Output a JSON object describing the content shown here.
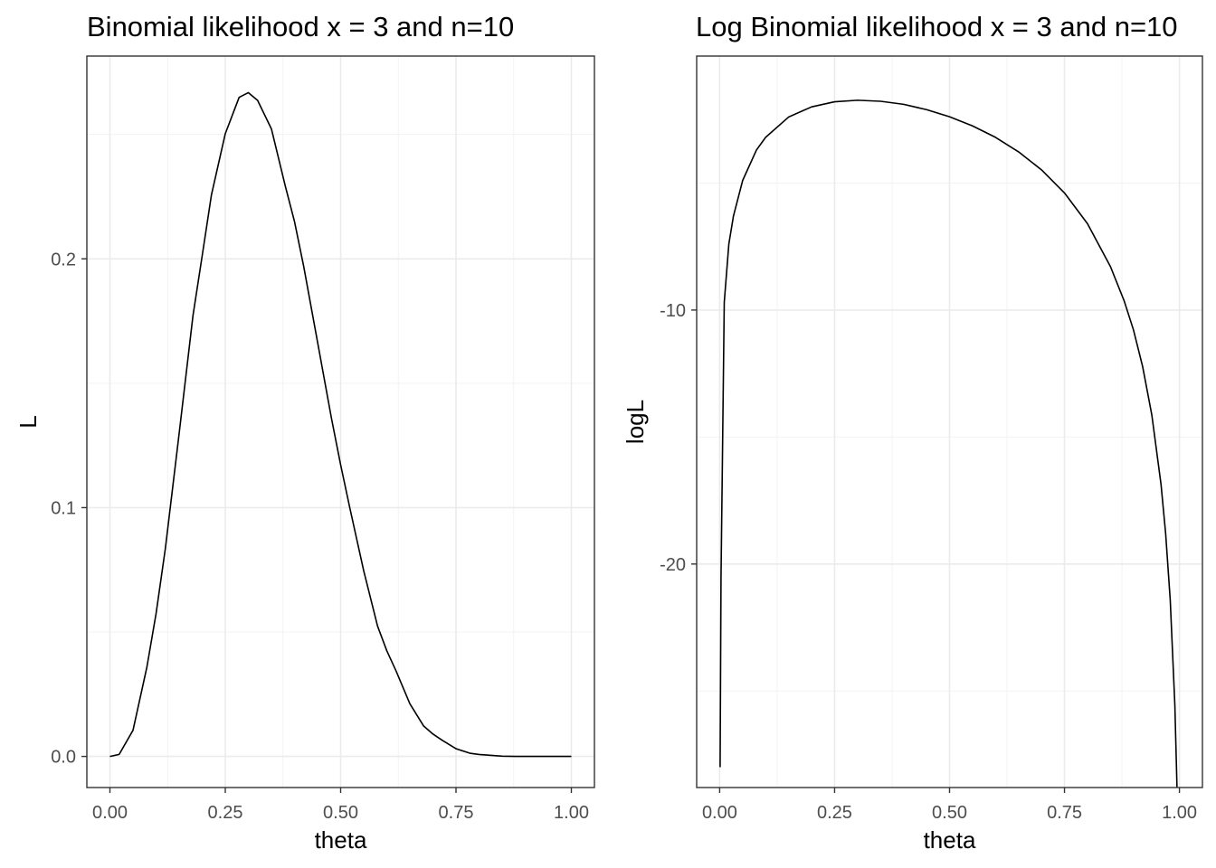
{
  "chart_data": [
    {
      "type": "line",
      "title": "Binomial likelihood x = 3 and n=10",
      "xlabel": "theta",
      "ylabel": "L",
      "xlim": [
        -0.05,
        1.05
      ],
      "ylim": [
        -0.0125,
        0.2815
      ],
      "x_major_ticks": [
        0,
        0.25,
        0.5,
        0.75,
        1
      ],
      "x_tick_labels": [
        "0.00",
        "0.25",
        "0.50",
        "0.75",
        "1.00"
      ],
      "x_minor_ticks": [
        0.125,
        0.375,
        0.625,
        0.875
      ],
      "y_major_ticks": [
        0,
        0.1,
        0.2
      ],
      "y_tick_labels": [
        "0.0",
        "0.1",
        "0.2"
      ],
      "y_minor_ticks": [
        0.05,
        0.15,
        0.25
      ],
      "grid": true,
      "series": [
        {
          "x": [
            0,
            0.02,
            0.05,
            0.08,
            0.1,
            0.12,
            0.15,
            0.18,
            0.2,
            0.22,
            0.25,
            0.28,
            0.3,
            0.32,
            0.35,
            0.38,
            0.4,
            0.42,
            0.45,
            0.48,
            0.5,
            0.52,
            0.55,
            0.58,
            0.6,
            0.62,
            0.65,
            0.68,
            0.7,
            0.72,
            0.75,
            0.78,
            0.8,
            0.82,
            0.85,
            0.88,
            0.9,
            0.92,
            0.95,
            0.98,
            1
          ],
          "y": [
            0,
            0.0008,
            0.0105,
            0.0358,
            0.0574,
            0.0834,
            0.1298,
            0.1772,
            0.2013,
            0.2257,
            0.2503,
            0.2649,
            0.2668,
            0.2637,
            0.2522,
            0.2293,
            0.215,
            0.1969,
            0.1665,
            0.136,
            0.1172,
            0.0998,
            0.0746,
            0.0524,
            0.0425,
            0.0344,
            0.0212,
            0.0122,
            0.009,
            0.0065,
            0.0031,
            0.0013,
            0.0008,
            0.0005,
            0.0001,
            0.0,
            0.0,
            0.0,
            0.0,
            0.0,
            0
          ]
        }
      ]
    },
    {
      "type": "line",
      "title": "Log Binomial likelihood x = 3 and n=10",
      "xlabel": "theta",
      "ylabel": "logL",
      "xlim": [
        -0.05,
        1.05
      ],
      "ylim": [
        -28.8,
        -0.0
      ],
      "x_major_ticks": [
        0,
        0.25,
        0.5,
        0.75,
        1
      ],
      "x_tick_labels": [
        "0.00",
        "0.25",
        "0.50",
        "0.75",
        "1.00"
      ],
      "x_minor_ticks": [
        0.125,
        0.375,
        0.625,
        0.875
      ],
      "y_major_ticks": [
        -20,
        -10
      ],
      "y_tick_labels": [
        "-20",
        "-10"
      ],
      "y_minor_ticks": [
        -25,
        -15,
        -5
      ],
      "grid": true,
      "series": [
        {
          "x": [
            0.001,
            0.003,
            0.006,
            0.01,
            0.02,
            0.03,
            0.05,
            0.08,
            0.1,
            0.15,
            0.2,
            0.25,
            0.3,
            0.35,
            0.4,
            0.45,
            0.5,
            0.55,
            0.6,
            0.65,
            0.7,
            0.75,
            0.8,
            0.85,
            0.88,
            0.9,
            0.92,
            0.94,
            0.96,
            0.97,
            0.98,
            0.99,
            0.995,
            0.999
          ],
          "y": [
            -28.0,
            -20.5,
            -15.9,
            -9.7,
            -7.4,
            -6.3,
            -4.9,
            -3.7,
            -3.2,
            -2.4,
            -2.0,
            -1.8,
            -1.74,
            -1.78,
            -1.9,
            -2.11,
            -2.39,
            -2.75,
            -3.2,
            -3.77,
            -4.48,
            -5.39,
            -6.6,
            -8.29,
            -9.65,
            -10.78,
            -12.23,
            -14.14,
            -16.87,
            -18.8,
            -21.42,
            -25.54,
            -29.0,
            -29.0
          ]
        }
      ]
    }
  ]
}
